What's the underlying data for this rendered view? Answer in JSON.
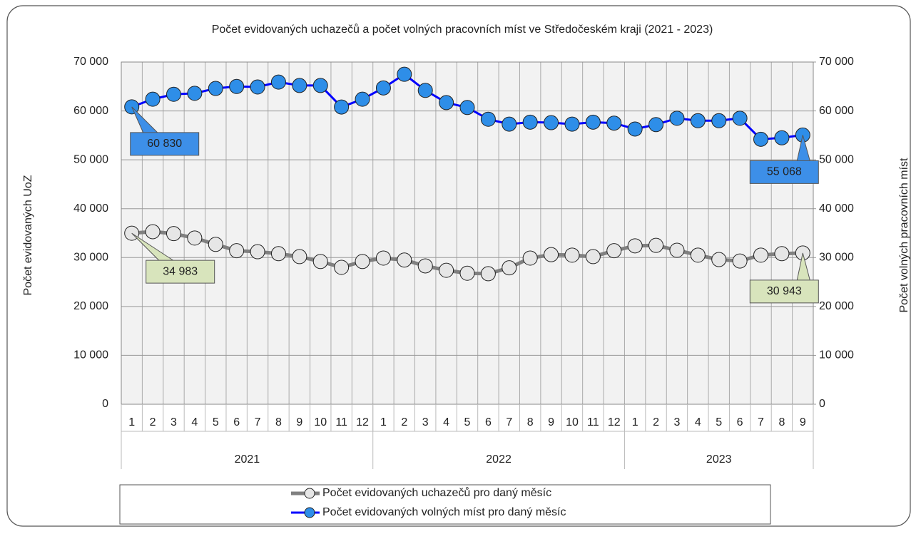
{
  "chart_data": {
    "type": "line",
    "title": "Počet evidovaných uchazečů a počet volných pracovních míst ve Středočeském kraji (2021 - 2023)",
    "y_label": "Počet evidovaných UoZ",
    "y2_label": "Počet volných pracovních míst",
    "categories": [
      "1",
      "2",
      "3",
      "4",
      "5",
      "6",
      "7",
      "8",
      "9",
      "10",
      "11",
      "12",
      "1",
      "2",
      "3",
      "4",
      "5",
      "6",
      "7",
      "8",
      "9",
      "10",
      "11",
      "12",
      "1",
      "2",
      "3",
      "4",
      "5",
      "6",
      "7",
      "8",
      "9"
    ],
    "x_groups": [
      {
        "label": "2021",
        "span": 12
      },
      {
        "label": "2022",
        "span": 12
      },
      {
        "label": "2023",
        "span": 9
      }
    ],
    "ylim": [
      0,
      70000
    ],
    "yticks": [
      0,
      {
        "value": 10000,
        "label": "10 000"
      },
      {
        "value": 20000,
        "label": "20 000"
      },
      {
        "value": 30000,
        "label": "30 000"
      },
      {
        "value": 40000,
        "label": "40 000"
      },
      {
        "value": 50000,
        "label": "50 000"
      },
      {
        "value": 60000,
        "label": "60 000"
      },
      {
        "value": 70000,
        "label": "70 000"
      }
    ],
    "y2lim": [
      0,
      70000
    ],
    "y2ticks": [
      0,
      {
        "value": 10000,
        "label": "10 000"
      },
      {
        "value": 20000,
        "label": "20 000"
      },
      {
        "value": 30000,
        "label": "30 000"
      },
      {
        "value": 40000,
        "label": "40 000"
      },
      {
        "value": 50000,
        "label": "50 000"
      },
      {
        "value": 60000,
        "label": "60 000"
      },
      {
        "value": 70000,
        "label": "70 000"
      }
    ],
    "grid": true,
    "legend": "bottom",
    "series": [
      {
        "name": "Počet evidovaných uchazečů pro daný měsíc",
        "color": "#808080",
        "marker_color": "#e6e6e6",
        "values": [
          34983,
          35300,
          34900,
          34000,
          32700,
          31400,
          31200,
          30800,
          30200,
          29200,
          28000,
          29200,
          29900,
          29500,
          28300,
          27400,
          26800,
          26700,
          27900,
          29900,
          30600,
          30500,
          30200,
          31400,
          32400,
          32500,
          31500,
          30500,
          29600,
          29300,
          30500,
          30800,
          30943
        ],
        "value_labels": [
          "34 983",
          null,
          null,
          null,
          null,
          null,
          null,
          null,
          null,
          null,
          null,
          null,
          null,
          null,
          null,
          null,
          null,
          null,
          null,
          null,
          null,
          null,
          null,
          null,
          null,
          null,
          null,
          null,
          null,
          null,
          null,
          null,
          "30 943"
        ],
        "label_color": "#d8e4bc"
      },
      {
        "name": "Počet evidovaných volných míst pro daný měsíc",
        "color": "#0000ff",
        "marker_color": "#2e8ee8",
        "axis": "y2",
        "values": [
          60830,
          62400,
          63400,
          63600,
          64600,
          65000,
          64900,
          65900,
          65200,
          65200,
          60800,
          62400,
          64700,
          67500,
          64200,
          61700,
          60700,
          58300,
          57300,
          57700,
          57600,
          57300,
          57700,
          57500,
          56300,
          57200,
          58500,
          58000,
          58000,
          58500,
          54200,
          54500,
          55068
        ],
        "value_labels": [
          "60 830",
          null,
          null,
          null,
          null,
          null,
          null,
          null,
          null,
          null,
          null,
          null,
          null,
          null,
          null,
          null,
          null,
          null,
          null,
          null,
          null,
          null,
          null,
          null,
          null,
          null,
          null,
          null,
          null,
          null,
          null,
          null,
          "55 068"
        ],
        "label_color": "#3d8fe8"
      }
    ]
  }
}
